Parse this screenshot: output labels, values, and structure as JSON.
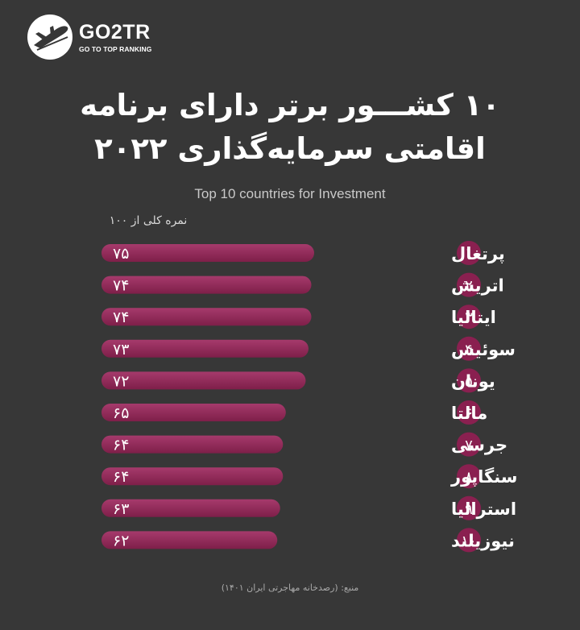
{
  "brand": {
    "name": "GO2TR",
    "tagline": "GO TO TOP RANKING",
    "logo_icon": "airplane-icon"
  },
  "title_line1": "۱۰ کشـــور برتر دارای برنامه",
  "title_line2": "اقامتی سرمایه‌گذاری ۲۰۲۲",
  "subtitle": "Top 10 countries for Investment",
  "score_label": "نمره کلی از ۱۰۰",
  "source": "منبع: (رصدخانه مهاجرتی ایران ۱۴۰۱)",
  "colors": {
    "background": "#373737",
    "bar": "#7e1f49",
    "bar_highlight": "#a63a6c",
    "rank_circle": "#8a2050",
    "text": "#ffffff"
  },
  "chart_data": {
    "type": "bar",
    "orientation": "horizontal",
    "ranks": [
      "۱",
      "۲",
      "۳",
      "۴",
      "۵",
      "۶",
      "۷",
      "۸",
      "۹",
      "۱۰"
    ],
    "categories": [
      "پرتغال",
      "اتریش",
      "ایتالیا",
      "سوئیس",
      "یونان",
      "مالتا",
      "جرسی",
      "سنگاپور",
      "استرالیا",
      "نیوزیلند"
    ],
    "values": [
      75,
      74,
      74,
      73,
      72,
      65,
      64,
      64,
      63,
      62
    ],
    "value_labels": [
      "۷۵",
      "۷۴",
      "۷۴",
      "۷۳",
      "۷۲",
      "۶۵",
      "۶۴",
      "۶۴",
      "۶۳",
      "۶۲"
    ],
    "xlim": [
      0,
      100
    ],
    "title": "۱۰ کشـــور برتر دارای برنامه اقامتی سرمایه‌گذاری ۲۰۲۲",
    "xlabel": "نمره کلی از ۱۰۰",
    "ylabel": ""
  }
}
